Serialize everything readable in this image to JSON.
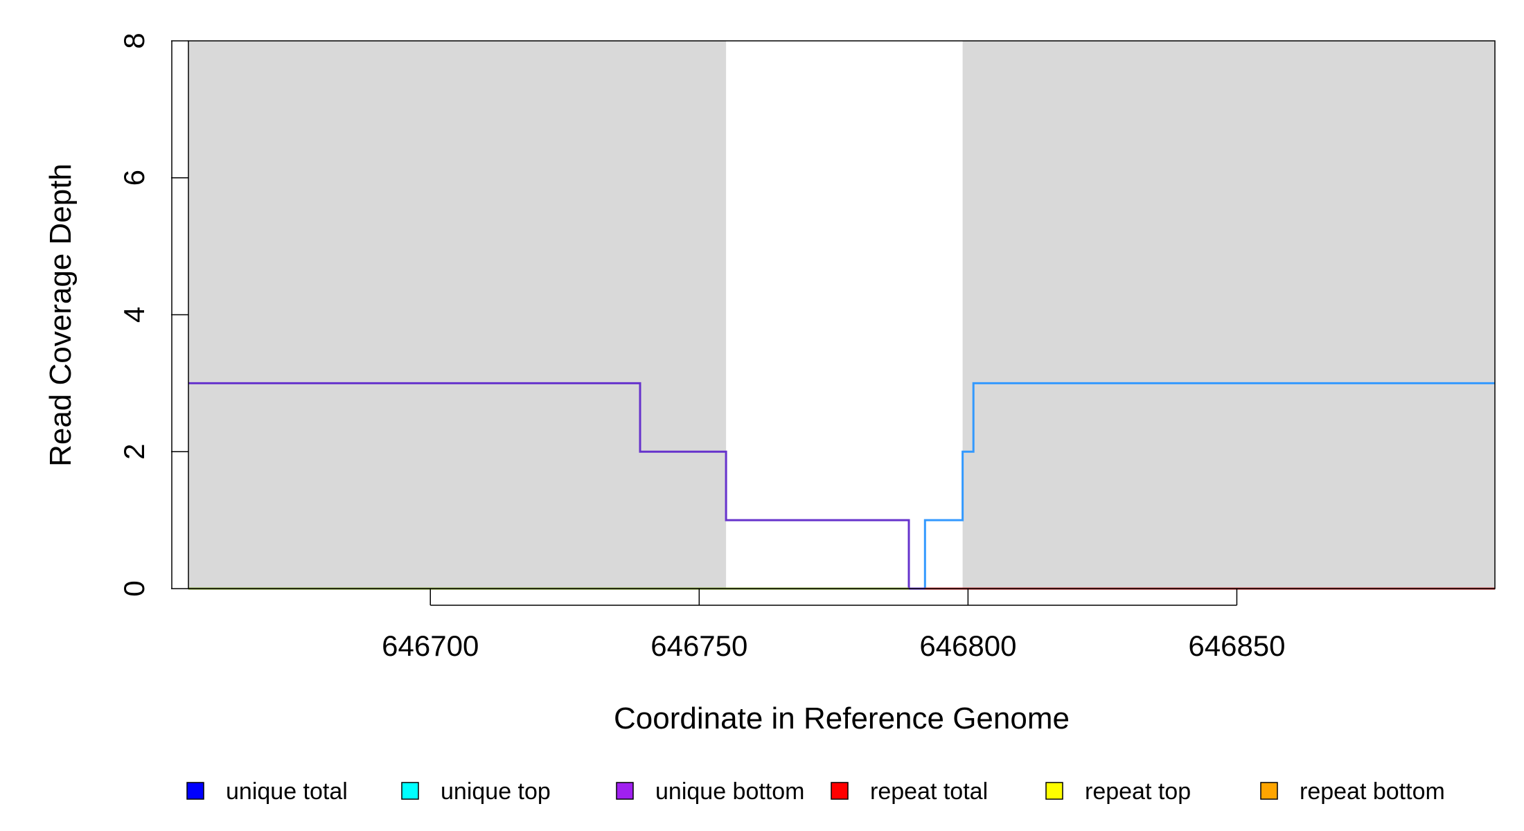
{
  "chart_data": {
    "type": "line",
    "step": true,
    "xlabel": "Coordinate in Reference Genome",
    "ylabel": "Read Coverage Depth",
    "xlim": [
      646655,
      646898
    ],
    "ylim": [
      0,
      8
    ],
    "x_ticks": [
      {
        "value": 646700,
        "label": "646700"
      },
      {
        "value": 646750,
        "label": "646750"
      },
      {
        "value": 646800,
        "label": "646800"
      },
      {
        "value": 646850,
        "label": "646850"
      }
    ],
    "y_ticks": [
      {
        "value": 0,
        "label": "0"
      },
      {
        "value": 2,
        "label": "2"
      },
      {
        "value": 4,
        "label": "4"
      },
      {
        "value": 6,
        "label": "6"
      },
      {
        "value": 8,
        "label": "8"
      }
    ],
    "shaded_regions": [
      {
        "x_start": 646655,
        "x_end": 646755,
        "color": "#d9d9d9"
      },
      {
        "x_start": 646799,
        "x_end": 646898,
        "color": "#d9d9d9"
      }
    ],
    "series": [
      {
        "name": "unique total",
        "color": "#0000ee",
        "points": [
          [
            646655,
            0
          ],
          [
            646898,
            0
          ]
        ]
      },
      {
        "name": "unique top",
        "color": "#3399ff",
        "points": [
          [
            646789,
            0
          ],
          [
            646792,
            0
          ],
          [
            646792,
            1
          ],
          [
            646799,
            1
          ],
          [
            646799,
            2
          ],
          [
            646801,
            2
          ],
          [
            646801,
            3
          ],
          [
            646898,
            3
          ]
        ]
      },
      {
        "name": "unique bottom",
        "color": "#6633cc",
        "points": [
          [
            646655,
            3
          ],
          [
            646739,
            3
          ],
          [
            646739,
            2
          ],
          [
            646755,
            2
          ],
          [
            646755,
            1
          ],
          [
            646789,
            1
          ],
          [
            646789,
            0
          ],
          [
            646792,
            0
          ]
        ]
      },
      {
        "name": "repeat total",
        "color": "#cc3333",
        "points": [
          [
            646792,
            0
          ],
          [
            646898,
            0
          ]
        ]
      },
      {
        "name": "repeat top",
        "color": "#ffff00",
        "points": []
      },
      {
        "name": "repeat bottom",
        "color": "#88aa33",
        "points": [
          [
            646655,
            0
          ],
          [
            646789,
            0
          ]
        ]
      }
    ],
    "legend": {
      "position": "bottom",
      "items": [
        {
          "label": "unique total",
          "color": "#0000ff"
        },
        {
          "label": "unique top",
          "color": "#00ffff"
        },
        {
          "label": "unique bottom",
          "color": "#a020f0"
        },
        {
          "label": "repeat total",
          "color": "#ff0000"
        },
        {
          "label": "repeat top",
          "color": "#ffff00"
        },
        {
          "label": "repeat bottom",
          "color": "#ffa500"
        }
      ]
    }
  }
}
